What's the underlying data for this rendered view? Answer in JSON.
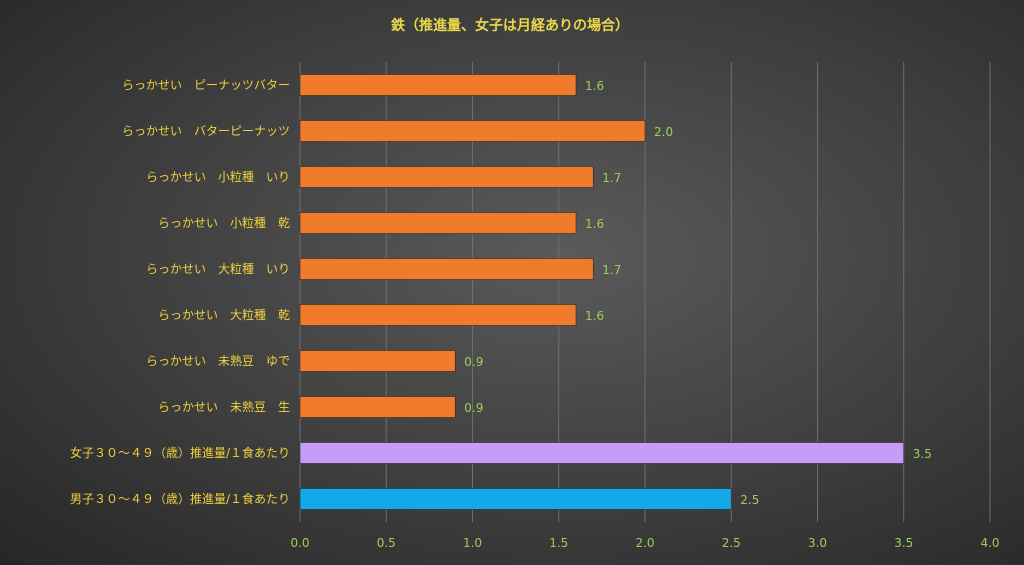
{
  "chart_data": {
    "type": "bar",
    "orientation": "horizontal",
    "title": "鉄（推進量、女子は月経ありの場合）",
    "categories": [
      "らっかせい　ピーナッツバター",
      "らっかせい　バターピーナッツ",
      "らっかせい　小粒種　いり",
      "らっかせい　小粒種　乾",
      "らっかせい　大粒種　いり",
      "らっかせい　大粒種　乾",
      "らっかせい　未熟豆　ゆで",
      "らっかせい　未熟豆　生",
      "女子３０～４９（歳）推進量/１食あたり",
      "男子３０～４９（歳）推進量/１食あたり"
    ],
    "values": [
      1.6,
      2.0,
      1.7,
      1.6,
      1.7,
      1.6,
      0.9,
      0.9,
      3.5,
      2.5
    ],
    "value_labels": [
      "1.6",
      "2.0",
      "1.7",
      "1.6",
      "1.7",
      "1.6",
      "0.9",
      "0.9",
      "3.5",
      "2.5"
    ],
    "bar_colors": [
      "#f07b2a",
      "#f07b2a",
      "#f07b2a",
      "#f07b2a",
      "#f07b2a",
      "#f07b2a",
      "#f07b2a",
      "#f07b2a",
      "#c79cf6",
      "#11a9e6"
    ],
    "xlim": [
      0,
      4.0
    ],
    "x_ticks": [
      "0.0",
      "0.5",
      "1.0",
      "1.5",
      "2.0",
      "2.5",
      "3.0",
      "3.5",
      "4.0"
    ],
    "x_tick_values": [
      0,
      0.5,
      1.0,
      1.5,
      2.0,
      2.5,
      3.0,
      3.5,
      4.0
    ],
    "grid": "vertical",
    "legend": "none"
  }
}
